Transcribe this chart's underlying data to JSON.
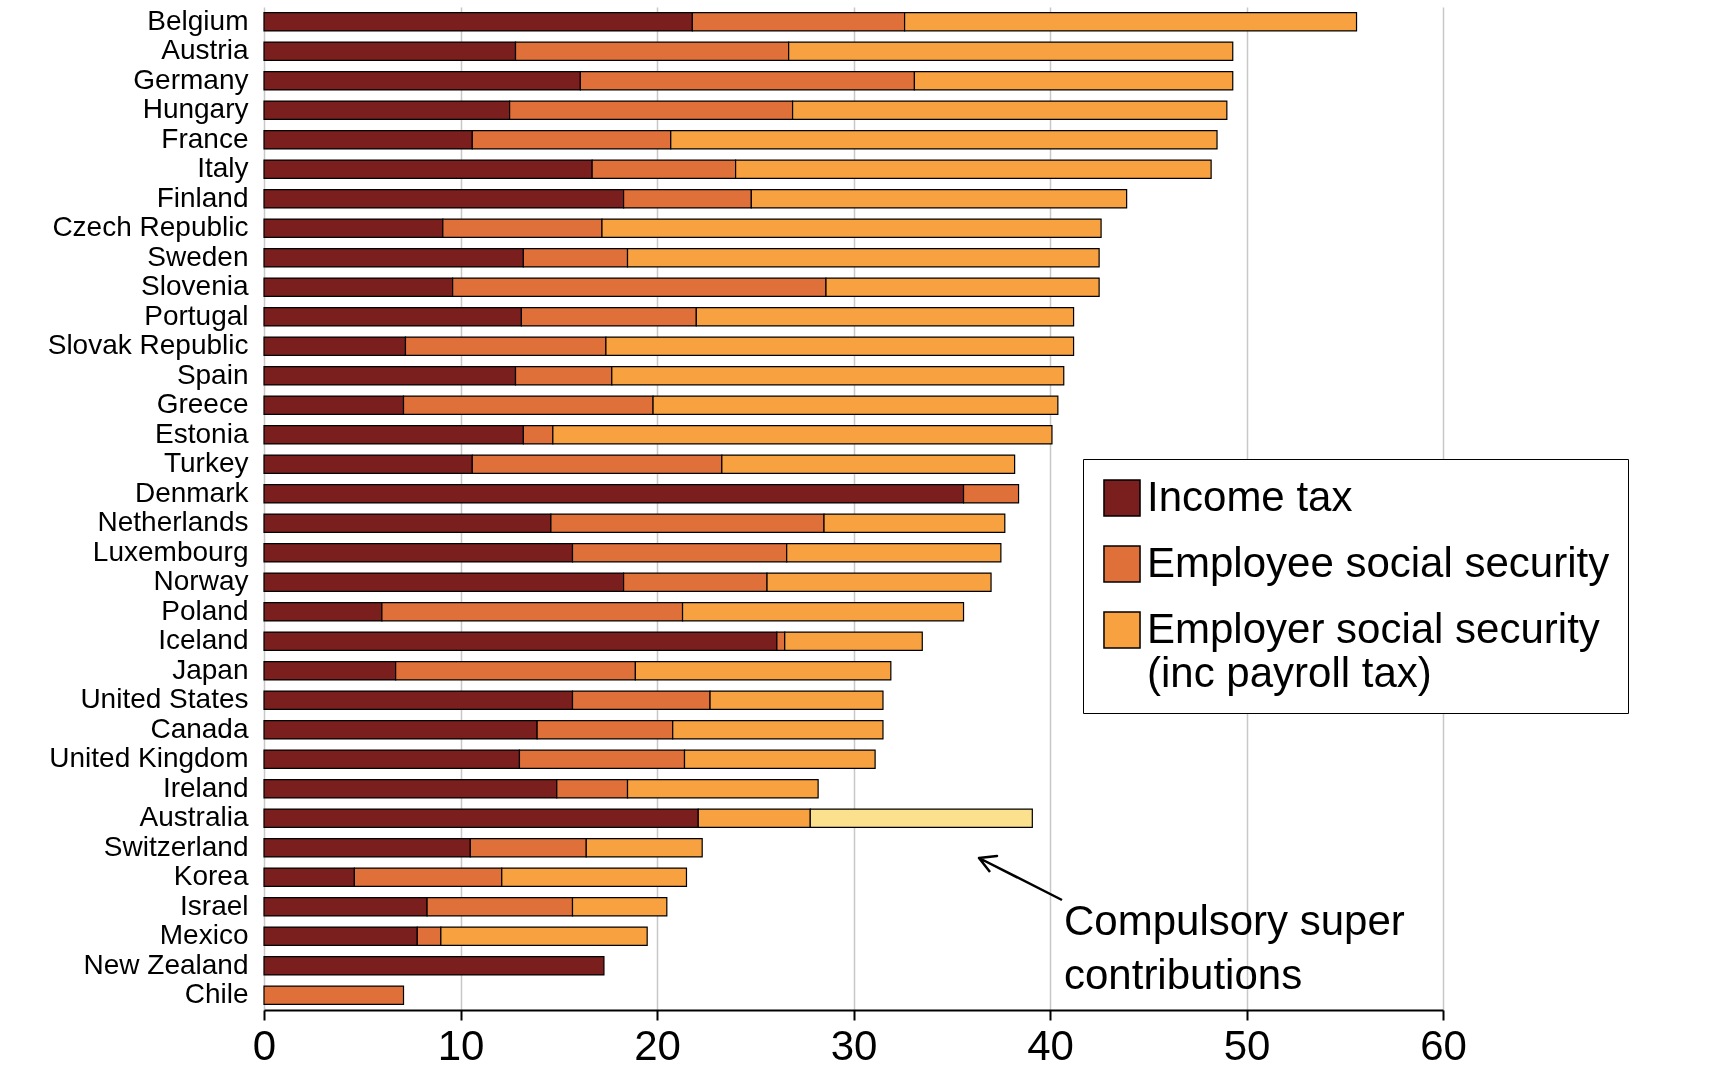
{
  "chart_data": {
    "type": "bar",
    "orientation": "horizontal",
    "stacked": true,
    "grid": "x",
    "legend": "right",
    "categories": [
      "Belgium",
      "Austria",
      "Germany",
      "Hungary",
      "France",
      "Italy",
      "Finland",
      "Czech Republic",
      "Sweden",
      "Slovenia",
      "Portugal",
      "Slovak Republic",
      "Spain",
      "Greece",
      "Estonia",
      "Turkey",
      "Denmark",
      "Netherlands",
      "Luxembourg",
      "Norway",
      "Poland",
      "Iceland",
      "Japan",
      "United States",
      "Canada",
      "United Kingdom",
      "Ireland",
      "Australia",
      "Switzerland",
      "Korea",
      "Israel",
      "Mexico",
      "New Zealand",
      "Chile"
    ],
    "series": [
      {
        "name": "Income tax",
        "color": "#7a1e1e",
        "values": [
          21.8,
          12.8,
          16.1,
          12.5,
          10.6,
          16.7,
          18.3,
          9.1,
          13.2,
          9.6,
          13.1,
          7.2,
          12.8,
          7.1,
          13.2,
          10.6,
          35.6,
          14.6,
          15.7,
          18.3,
          6.0,
          26.1,
          6.7,
          15.7,
          13.9,
          13.0,
          14.9,
          22.1,
          10.5,
          4.6,
          8.3,
          7.8,
          17.3,
          null
        ]
      },
      {
        "name": "Employee social security",
        "color": "#e0703a",
        "values": [
          10.8,
          13.9,
          17.0,
          14.4,
          10.1,
          7.3,
          6.5,
          8.1,
          5.3,
          19.0,
          8.9,
          10.2,
          4.9,
          12.7,
          1.5,
          12.7,
          2.8,
          13.9,
          10.9,
          7.3,
          15.3,
          0.4,
          12.2,
          7.0,
          6.9,
          8.4,
          3.6,
          null,
          5.9,
          7.5,
          7.4,
          1.2,
          null,
          7.1
        ]
      },
      {
        "name": "Employer social security (inc payroll tax)",
        "color": "#f8a141",
        "values": [
          23.0,
          22.6,
          16.2,
          22.1,
          27.8,
          24.2,
          19.1,
          25.4,
          24.0,
          13.9,
          19.2,
          23.8,
          23.0,
          20.6,
          25.4,
          14.9,
          null,
          9.2,
          10.9,
          11.4,
          14.3,
          7.0,
          13.0,
          8.8,
          10.7,
          9.7,
          9.7,
          5.7,
          5.9,
          9.4,
          4.8,
          10.5,
          null,
          null
        ]
      },
      {
        "color": "#fbe08d",
        "values": [
          null,
          null,
          null,
          null,
          null,
          null,
          null,
          null,
          null,
          null,
          null,
          null,
          null,
          null,
          null,
          null,
          null,
          null,
          null,
          null,
          null,
          null,
          null,
          null,
          null,
          null,
          null,
          11.3,
          null,
          null,
          null,
          null,
          null,
          null
        ]
      }
    ],
    "xlim": [
      0,
      60
    ],
    "xticks": [
      0,
      10,
      20,
      30,
      40,
      50,
      60
    ],
    "annotations": [
      "Compulsory super contributions"
    ]
  }
}
